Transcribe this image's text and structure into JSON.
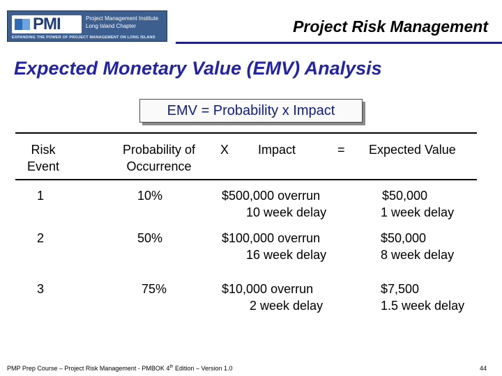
{
  "header": {
    "logo": {
      "wordmark": "PMI",
      "line1": "Project Management Institute",
      "line2": "Long Island Chapter",
      "tagline": "EXPANDING THE POWER OF PROJECT MANAGEMENT ON LONG ISLAND"
    },
    "title": "Project Risk Management"
  },
  "slide_title": "Expected Monetary Value (EMV) Analysis",
  "formula": "EMV = Probability x Impact",
  "table": {
    "headers": {
      "risk_event": [
        "Risk",
        "Event"
      ],
      "probability": [
        "Probability of",
        "Occurrence"
      ],
      "times": "X",
      "impact": "Impact",
      "equals": "=",
      "expected_value": "Expected Value"
    },
    "rows": [
      {
        "event": "1",
        "probability": "10%",
        "impact": [
          "$500,000 overrun",
          "10 week delay"
        ],
        "expected": [
          "$50,000",
          "1 week delay"
        ]
      },
      {
        "event": "2",
        "probability": "50%",
        "impact": [
          "$100,000 overrun",
          "16 week delay"
        ],
        "expected": [
          "$50,000",
          "8 week delay"
        ]
      },
      {
        "event": "3",
        "probability": "75%",
        "impact": [
          "$10,000 overrun",
          "2 week delay"
        ],
        "expected": [
          "$7,500",
          "1.5 week delay"
        ]
      }
    ]
  },
  "footer": {
    "text_before": "PMP Prep Course – Project Risk Management - PMBOK 4",
    "superscript": "th",
    "text_after": " Edition – Version 1.0",
    "page_number": "44"
  },
  "colors": {
    "title_blue": "#2323a8",
    "formula_blue": "#101c8c",
    "header_rule": "#1f1f8f",
    "logo_bg": "#3d5f8f"
  }
}
